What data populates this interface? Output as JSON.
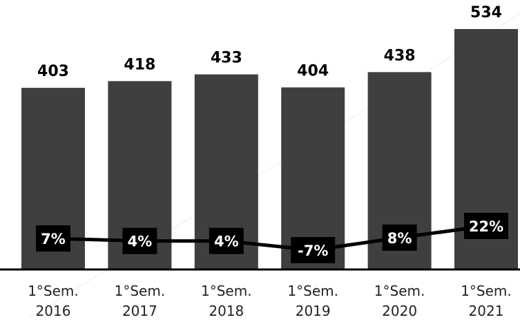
{
  "chart_data": {
    "type": "bar",
    "categories": [
      [
        "1°Sem.",
        "2016"
      ],
      [
        "1°Sem.",
        "2017"
      ],
      [
        "1°Sem.",
        "2018"
      ],
      [
        "1°Sem.",
        "2019"
      ],
      [
        "1°Sem.",
        "2020"
      ],
      [
        "1°Sem.",
        "2021"
      ]
    ],
    "series": [
      {
        "type": "bar",
        "values": [
          403,
          418,
          433,
          404,
          438,
          534
        ],
        "labels": [
          "403",
          "418",
          "433",
          "404",
          "438",
          "534"
        ]
      },
      {
        "type": "line",
        "values": [
          7,
          4,
          4,
          -7,
          8,
          22
        ],
        "labels": [
          "7%",
          "4%",
          "4%",
          "-7%",
          "8%",
          "22%"
        ]
      }
    ],
    "ylim_bars": [
      0,
      534
    ],
    "ylim_line": [
      -7,
      22
    ],
    "grid": false,
    "legend": "none",
    "colors": {
      "bar": "#3f3f3f",
      "line": "#000000",
      "label_box": "#000000",
      "label_text": "#ffffff",
      "value_text": "#000000",
      "axis": "#000000",
      "category_text": "#222222"
    }
  }
}
